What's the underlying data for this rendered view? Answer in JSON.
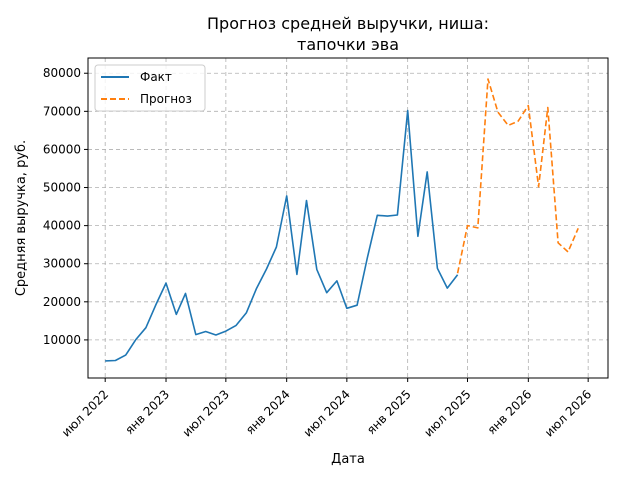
{
  "chart_data": {
    "type": "line",
    "title": [
      "Прогноз средней выручки, ниша:",
      "тапочки эва"
    ],
    "xlabel": "Дата",
    "ylabel": "Средняя выручка, руб.",
    "ylim": [
      0,
      84000
    ],
    "x_range": [
      "2022-05-10",
      "2026-08-30"
    ],
    "grid": true,
    "legend_position": "top-left",
    "y_ticks": [
      10000,
      20000,
      30000,
      40000,
      50000,
      60000,
      70000,
      80000
    ],
    "x_ticks": [
      {
        "date": "2022-07-01",
        "label": "июл 2022"
      },
      {
        "date": "2023-01-01",
        "label": "янв 2023"
      },
      {
        "date": "2023-07-01",
        "label": "июл 2023"
      },
      {
        "date": "2024-01-01",
        "label": "янв 2024"
      },
      {
        "date": "2024-07-01",
        "label": "июл 2024"
      },
      {
        "date": "2025-01-01",
        "label": "янв 2025"
      },
      {
        "date": "2025-07-01",
        "label": "июл 2025"
      },
      {
        "date": "2026-01-01",
        "label": "янв 2026"
      },
      {
        "date": "2026-07-01",
        "label": "июл 2026"
      }
    ],
    "series": [
      {
        "name": "Факт",
        "color": "#1f77b4",
        "style": "solid",
        "points": [
          {
            "x": "2022-07-01",
            "y": 4500
          },
          {
            "x": "2022-08-01",
            "y": 4600
          },
          {
            "x": "2022-09-01",
            "y": 6000
          },
          {
            "x": "2022-10-01",
            "y": 10000
          },
          {
            "x": "2022-11-01",
            "y": 13200
          },
          {
            "x": "2022-12-01",
            "y": 19200
          },
          {
            "x": "2023-01-01",
            "y": 24900
          },
          {
            "x": "2023-02-01",
            "y": 16700
          },
          {
            "x": "2023-03-01",
            "y": 22200
          },
          {
            "x": "2023-04-01",
            "y": 11400
          },
          {
            "x": "2023-05-01",
            "y": 12200
          },
          {
            "x": "2023-06-01",
            "y": 11300
          },
          {
            "x": "2023-07-01",
            "y": 12300
          },
          {
            "x": "2023-08-01",
            "y": 13800
          },
          {
            "x": "2023-09-01",
            "y": 17100
          },
          {
            "x": "2023-10-01",
            "y": 23400
          },
          {
            "x": "2023-11-01",
            "y": 28600
          },
          {
            "x": "2023-12-01",
            "y": 34400
          },
          {
            "x": "2024-01-01",
            "y": 47800
          },
          {
            "x": "2024-02-01",
            "y": 27200
          },
          {
            "x": "2024-03-01",
            "y": 46600
          },
          {
            "x": "2024-04-01",
            "y": 28500
          },
          {
            "x": "2024-05-01",
            "y": 22400
          },
          {
            "x": "2024-06-01",
            "y": 25500
          },
          {
            "x": "2024-07-01",
            "y": 18300
          },
          {
            "x": "2024-08-01",
            "y": 19100
          },
          {
            "x": "2024-09-01",
            "y": 31500
          },
          {
            "x": "2024-10-01",
            "y": 42700
          },
          {
            "x": "2024-11-01",
            "y": 42500
          },
          {
            "x": "2024-12-01",
            "y": 42800
          },
          {
            "x": "2025-01-01",
            "y": 70200
          },
          {
            "x": "2025-02-01",
            "y": 37200
          },
          {
            "x": "2025-03-01",
            "y": 54100
          },
          {
            "x": "2025-04-01",
            "y": 28800
          },
          {
            "x": "2025-05-01",
            "y": 23600
          },
          {
            "x": "2025-06-01",
            "y": 27100
          }
        ]
      },
      {
        "name": "Прогноз",
        "color": "#ff7f0e",
        "style": "dashed",
        "points": [
          {
            "x": "2025-06-01",
            "y": 27500
          },
          {
            "x": "2025-07-01",
            "y": 40000
          },
          {
            "x": "2025-08-01",
            "y": 39400
          },
          {
            "x": "2025-09-01",
            "y": 78500
          },
          {
            "x": "2025-10-01",
            "y": 69800
          },
          {
            "x": "2025-11-01",
            "y": 66300
          },
          {
            "x": "2025-12-01",
            "y": 67400
          },
          {
            "x": "2026-01-01",
            "y": 71500
          },
          {
            "x": "2026-02-01",
            "y": 50200
          },
          {
            "x": "2026-03-01",
            "y": 71000
          },
          {
            "x": "2026-04-01",
            "y": 35500
          },
          {
            "x": "2026-05-01",
            "y": 33100
          },
          {
            "x": "2026-06-01",
            "y": 39300
          }
        ]
      }
    ]
  }
}
